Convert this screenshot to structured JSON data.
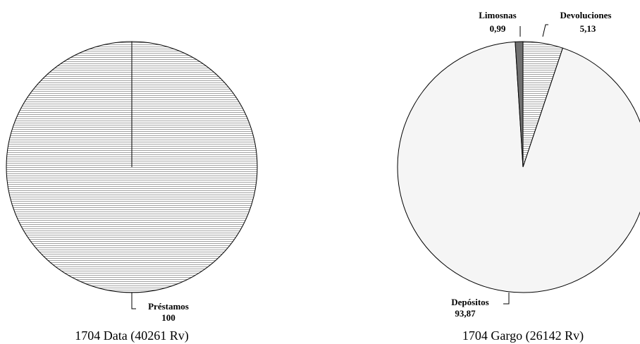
{
  "chart_data": [
    {
      "type": "pie",
      "title": "1704 Data (40261 Rv)",
      "slices": [
        {
          "name": "Préstamos",
          "value": 100,
          "value_label": "100",
          "color": "#e8e8e8",
          "pattern": "horizontal-lines"
        }
      ]
    },
    {
      "type": "pie",
      "title": "1704 Gargo (26142 Rv)",
      "slices": [
        {
          "name": "Devoluciones",
          "value": 5.13,
          "value_label": "5,13",
          "color": "#e8e8e8",
          "pattern": "horizontal-lines"
        },
        {
          "name": "Depósitos",
          "value": 93.87,
          "value_label": "93,87",
          "color": "#f5f5f5",
          "pattern": "solid"
        },
        {
          "name": "Limosnas",
          "value": 0.99,
          "value_label": "0,99",
          "color": "#707070",
          "pattern": "solid"
        }
      ]
    }
  ]
}
